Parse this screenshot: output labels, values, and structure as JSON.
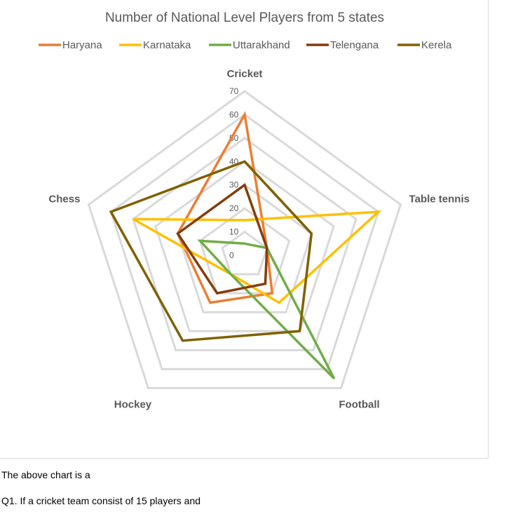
{
  "chart_data": {
    "type": "radar",
    "title": "Number of National Level Players from 5 states",
    "categories": [
      "Cricket",
      "Table tennis",
      "Football",
      "Hockey",
      "Chess"
    ],
    "r_ticks": [
      0,
      10,
      20,
      30,
      40,
      50,
      60,
      70
    ],
    "rlim": [
      0,
      70
    ],
    "legend_position": "top",
    "grid": true,
    "series": [
      {
        "name": "Haryana",
        "color": "#ED7D31",
        "values": [
          60,
          10,
          20,
          25,
          30
        ]
      },
      {
        "name": "Karnataka",
        "color": "#FFC000",
        "values": [
          15,
          60,
          25,
          10,
          50
        ]
      },
      {
        "name": "Uttarakhand",
        "color": "#70AD47",
        "values": [
          5,
          10,
          65,
          10,
          20
        ]
      },
      {
        "name": "Telengana",
        "color": "#843C0C",
        "values": [
          30,
          10,
          15,
          20,
          30
        ]
      },
      {
        "name": "Kerela",
        "color": "#806000",
        "values": [
          40,
          30,
          40,
          45,
          60
        ]
      }
    ]
  },
  "below": {
    "line1": "The above chart is a",
    "line2": "Q1. If a cricket team consist of 15 players and"
  }
}
